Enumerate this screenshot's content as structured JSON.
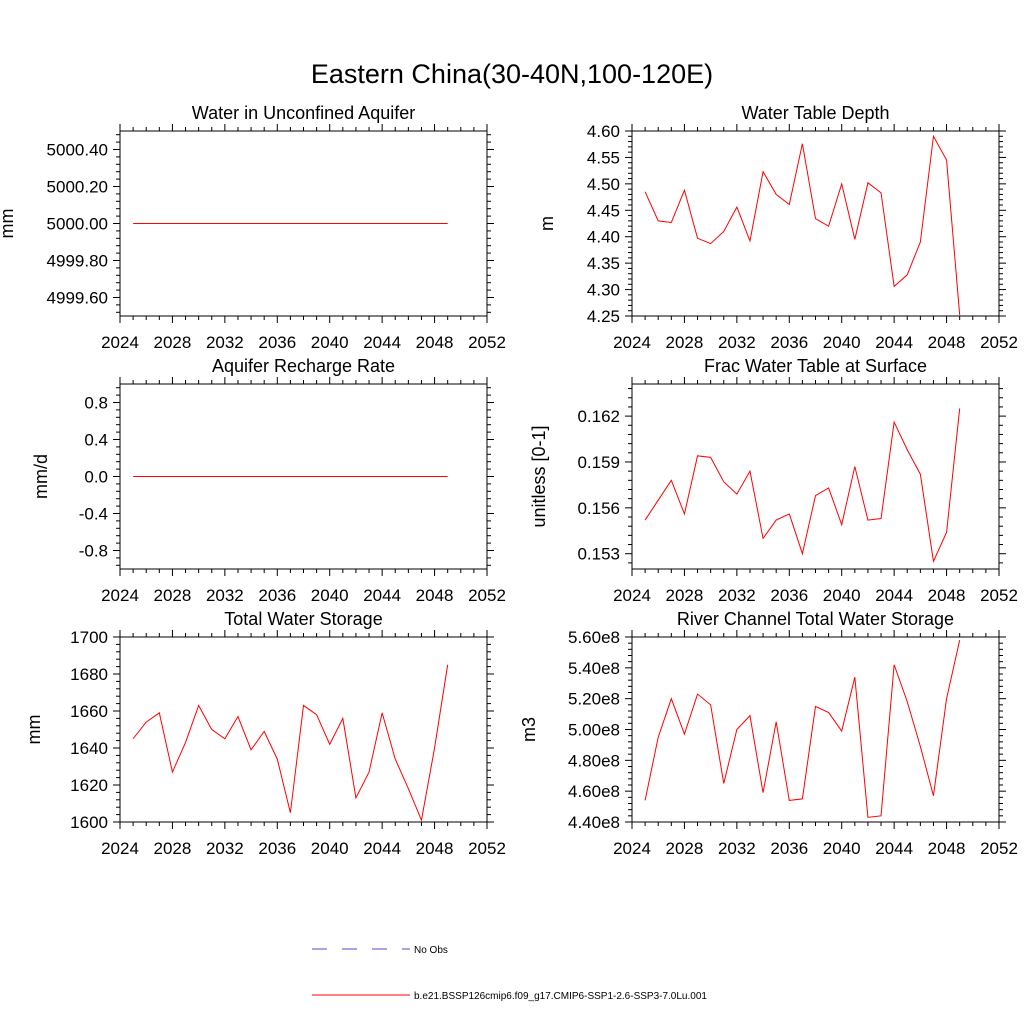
{
  "figure": {
    "title": "Eastern China(30-40N,100-120E)"
  },
  "chart_data": [
    {
      "type": "line",
      "title": "Water in Unconfined Aquifer",
      "xlabel": "",
      "ylabel": "mm",
      "xlim": [
        2024,
        2052
      ],
      "ylim": [
        4999.5,
        5000.5
      ],
      "xticks": [
        2024,
        2028,
        2032,
        2036,
        2040,
        2044,
        2048,
        2052
      ],
      "xtick_labels": [
        "2024",
        "2028",
        "2032",
        "2036",
        "2040",
        "2044",
        "2048",
        "2052"
      ],
      "yticks": [
        4999.6,
        4999.8,
        5000.0,
        5000.2,
        5000.4
      ],
      "ytick_labels": [
        "4999.60",
        "4999.80",
        "5000.00",
        "5000.20",
        "5000.40"
      ],
      "x": [
        2025,
        2026,
        2027,
        2028,
        2029,
        2030,
        2031,
        2032,
        2033,
        2034,
        2035,
        2036,
        2037,
        2038,
        2039,
        2040,
        2041,
        2042,
        2043,
        2044,
        2045,
        2046,
        2047,
        2048,
        2049
      ],
      "series": [
        {
          "color": "#ff0000",
          "values": [
            5000,
            5000,
            5000,
            5000,
            5000,
            5000,
            5000,
            5000,
            5000,
            5000,
            5000,
            5000,
            5000,
            5000,
            5000,
            5000,
            5000,
            5000,
            5000,
            5000,
            5000,
            5000,
            5000,
            5000,
            5000
          ]
        }
      ]
    },
    {
      "type": "line",
      "title": "Water Table Depth",
      "xlabel": "",
      "ylabel": "m",
      "xlim": [
        2024,
        2052
      ],
      "ylim": [
        4.25,
        4.6
      ],
      "xticks": [
        2024,
        2028,
        2032,
        2036,
        2040,
        2044,
        2048,
        2052
      ],
      "xtick_labels": [
        "2024",
        "2028",
        "2032",
        "2036",
        "2040",
        "2044",
        "2048",
        "2052"
      ],
      "yticks": [
        4.25,
        4.3,
        4.35,
        4.4,
        4.45,
        4.5,
        4.55,
        4.6
      ],
      "ytick_labels": [
        "4.25",
        "4.30",
        "4.35",
        "4.40",
        "4.45",
        "4.50",
        "4.55",
        "4.60"
      ],
      "x": [
        2025,
        2026,
        2027,
        2028,
        2029,
        2030,
        2031,
        2032,
        2033,
        2034,
        2035,
        2036,
        2037,
        2038,
        2039,
        2040,
        2041,
        2042,
        2043,
        2044,
        2045,
        2046,
        2047,
        2048,
        2049
      ],
      "series": [
        {
          "color": "#ff0000",
          "values": [
            4.485,
            4.43,
            4.427,
            4.488,
            4.397,
            4.387,
            4.41,
            4.456,
            4.392,
            4.523,
            4.48,
            4.461,
            4.576,
            4.434,
            4.42,
            4.5,
            4.395,
            4.502,
            4.483,
            4.306,
            4.328,
            4.39,
            4.59,
            4.545,
            4.252
          ]
        }
      ]
    },
    {
      "type": "line",
      "title": "Aquifer Recharge Rate",
      "xlabel": "",
      "ylabel": "mm/d",
      "xlim": [
        2024,
        2052
      ],
      "ylim": [
        -1,
        1
      ],
      "xticks": [
        2024,
        2028,
        2032,
        2036,
        2040,
        2044,
        2048,
        2052
      ],
      "xtick_labels": [
        "2024",
        "2028",
        "2032",
        "2036",
        "2040",
        "2044",
        "2048",
        "2052"
      ],
      "yticks": [
        -0.8,
        -0.4,
        0.0,
        0.4,
        0.8
      ],
      "ytick_labels": [
        "-0.8",
        "-0.4",
        "0.0",
        "0.4",
        "0.8"
      ],
      "x": [
        2025,
        2026,
        2027,
        2028,
        2029,
        2030,
        2031,
        2032,
        2033,
        2034,
        2035,
        2036,
        2037,
        2038,
        2039,
        2040,
        2041,
        2042,
        2043,
        2044,
        2045,
        2046,
        2047,
        2048,
        2049
      ],
      "series": [
        {
          "color": "#ff0000",
          "values": [
            0,
            0,
            0,
            0,
            0,
            0,
            0,
            0,
            0,
            0,
            0,
            0,
            0,
            0,
            0,
            0,
            0,
            0,
            0,
            0,
            0,
            0,
            0,
            0,
            0
          ]
        }
      ]
    },
    {
      "type": "line",
      "title": "Frac Water Table at Surface",
      "xlabel": "",
      "ylabel": "unitless [0-1]",
      "xlim": [
        2024,
        2052
      ],
      "ylim": [
        0.152,
        0.1641
      ],
      "xticks": [
        2024,
        2028,
        2032,
        2036,
        2040,
        2044,
        2048,
        2052
      ],
      "xtick_labels": [
        "2024",
        "2028",
        "2032",
        "2036",
        "2040",
        "2044",
        "2048",
        "2052"
      ],
      "yticks": [
        0.153,
        0.156,
        0.159,
        0.162
      ],
      "ytick_labels": [
        "0.153",
        "0.156",
        "0.159",
        "0.162"
      ],
      "x": [
        2025,
        2026,
        2027,
        2028,
        2029,
        2030,
        2031,
        2032,
        2033,
        2034,
        2035,
        2036,
        2037,
        2038,
        2039,
        2040,
        2041,
        2042,
        2043,
        2044,
        2045,
        2046,
        2047,
        2048,
        2049
      ],
      "series": [
        {
          "color": "#ff0000",
          "values": [
            0.1552,
            0.1565,
            0.1578,
            0.1556,
            0.1594,
            0.1593,
            0.1577,
            0.1569,
            0.1584,
            0.154,
            0.1552,
            0.1556,
            0.153,
            0.1568,
            0.1573,
            0.1549,
            0.1587,
            0.1552,
            0.1553,
            0.1616,
            0.1598,
            0.1582,
            0.1525,
            0.1544,
            0.1625
          ]
        }
      ]
    },
    {
      "type": "line",
      "title": "Total Water Storage",
      "xlabel": "",
      "ylabel": "mm",
      "xlim": [
        2024,
        2052
      ],
      "ylim": [
        1600,
        1700
      ],
      "xticks": [
        2024,
        2028,
        2032,
        2036,
        2040,
        2044,
        2048,
        2052
      ],
      "xtick_labels": [
        "2024",
        "2028",
        "2032",
        "2036",
        "2040",
        "2044",
        "2048",
        "2052"
      ],
      "yticks": [
        1600,
        1620,
        1640,
        1660,
        1680,
        1700
      ],
      "ytick_labels": [
        "1600",
        "1620",
        "1640",
        "1660",
        "1680",
        "1700"
      ],
      "x": [
        2025,
        2026,
        2027,
        2028,
        2029,
        2030,
        2031,
        2032,
        2033,
        2034,
        2035,
        2036,
        2037,
        2038,
        2039,
        2040,
        2041,
        2042,
        2043,
        2044,
        2045,
        2046,
        2047,
        2048,
        2049
      ],
      "series": [
        {
          "color": "#ff0000",
          "values": [
            1645,
            1654,
            1659,
            1627,
            1643,
            1663,
            1650,
            1645,
            1657,
            1639,
            1649,
            1634,
            1605,
            1663,
            1658,
            1642,
            1656,
            1613,
            1627,
            1659,
            1634,
            1618,
            1601,
            1640,
            1685
          ]
        }
      ]
    },
    {
      "type": "line",
      "title": "River Channel Total Water Storage",
      "xlabel": "",
      "ylabel": "m3",
      "xlim": [
        2024,
        2052
      ],
      "ylim": [
        440000000.0,
        560000000.0
      ],
      "xticks": [
        2024,
        2028,
        2032,
        2036,
        2040,
        2044,
        2048,
        2052
      ],
      "xtick_labels": [
        "2024",
        "2028",
        "2032",
        "2036",
        "2040",
        "2044",
        "2048",
        "2052"
      ],
      "yticks": [
        440000000.0,
        460000000.0,
        480000000.0,
        500000000.0,
        520000000.0,
        540000000.0,
        560000000.0
      ],
      "ytick_labels": [
        "4.40e8",
        "4.60e8",
        "4.80e8",
        "5.00e8",
        "5.20e8",
        "5.40e8",
        "5.60e8"
      ],
      "x": [
        2025,
        2026,
        2027,
        2028,
        2029,
        2030,
        2031,
        2032,
        2033,
        2034,
        2035,
        2036,
        2037,
        2038,
        2039,
        2040,
        2041,
        2042,
        2043,
        2044,
        2045,
        2046,
        2047,
        2048,
        2049
      ],
      "series": [
        {
          "color": "#ff0000",
          "values": [
            454000000.0,
            495000000.0,
            520000000.0,
            497000000.0,
            523000000.0,
            516000000.0,
            465000000.0,
            500000000.0,
            509000000.0,
            459000000.0,
            505000000.0,
            454000000.0,
            455000000.0,
            515000000.0,
            511000000.0,
            499000000.0,
            534000000.0,
            443000000.0,
            444000000.0,
            542000000.0,
            518000000.0,
            489000000.0,
            457000000.0,
            520000000.0,
            558000000.0
          ]
        }
      ]
    }
  ],
  "legend": {
    "items": [
      {
        "label": "No Obs",
        "color": "#4d4dcc",
        "style": "dashed"
      },
      {
        "label": "b.e21.BSSP126cmip6.f09_g17.CMIP6-SSP1-2.6-SSP3-7.0Lu.001",
        "color": "#ff0000",
        "style": "solid"
      }
    ]
  }
}
